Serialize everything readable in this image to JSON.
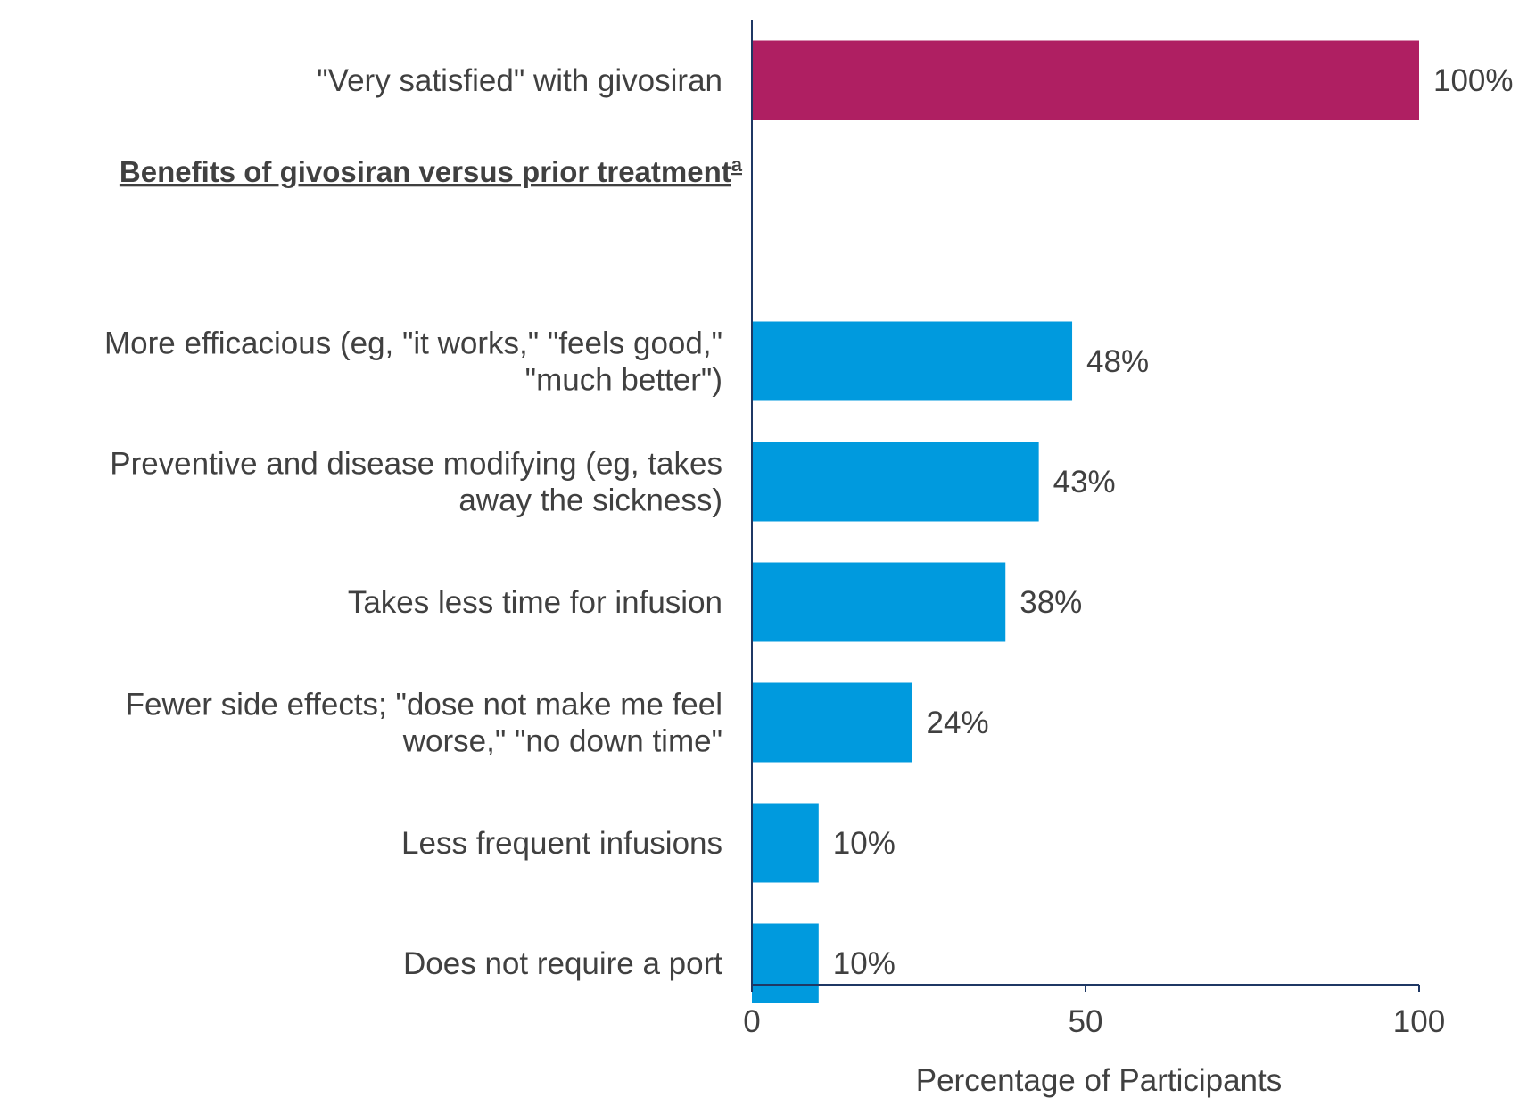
{
  "chart_data": {
    "type": "bar",
    "orientation": "horizontal",
    "xlabel": "Percentage of Participants",
    "xlim": [
      0,
      100
    ],
    "xticks": [
      "0",
      "50",
      "100"
    ],
    "section_heading": {
      "text": "Benefits of givosiran versus prior treatment",
      "superscript": "a"
    },
    "categories": [
      {
        "lines": [
          "\"Very satisfied\" with givosiran"
        ],
        "value": 100,
        "label": "100%",
        "group": "satisfaction"
      },
      {
        "lines": [
          "More efficacious (eg, \"it works,\" \"feels good,\"",
          "\"much better\")"
        ],
        "value": 48,
        "label": "48%",
        "group": "benefit"
      },
      {
        "lines": [
          "Preventive and disease modifying (eg, takes",
          "away the sickness)"
        ],
        "value": 43,
        "label": "43%",
        "group": "benefit"
      },
      {
        "lines": [
          "Takes less time for infusion"
        ],
        "value": 38,
        "label": "38%",
        "group": "benefit"
      },
      {
        "lines": [
          "Fewer side effects; \"dose not make me feel",
          "worse,\" \"no down time\""
        ],
        "value": 24,
        "label": "24%",
        "group": "benefit"
      },
      {
        "lines": [
          "Less frequent infusions"
        ],
        "value": 10,
        "label": "10%",
        "group": "benefit"
      },
      {
        "lines": [
          "Does not require a port"
        ],
        "value": 10,
        "label": "10%",
        "group": "benefit"
      }
    ],
    "colors": {
      "satisfaction": "#AF1F62",
      "benefit": "#009ADE",
      "axis": "#1F3864",
      "text": "#404040"
    },
    "grid": false,
    "legend": "none"
  }
}
